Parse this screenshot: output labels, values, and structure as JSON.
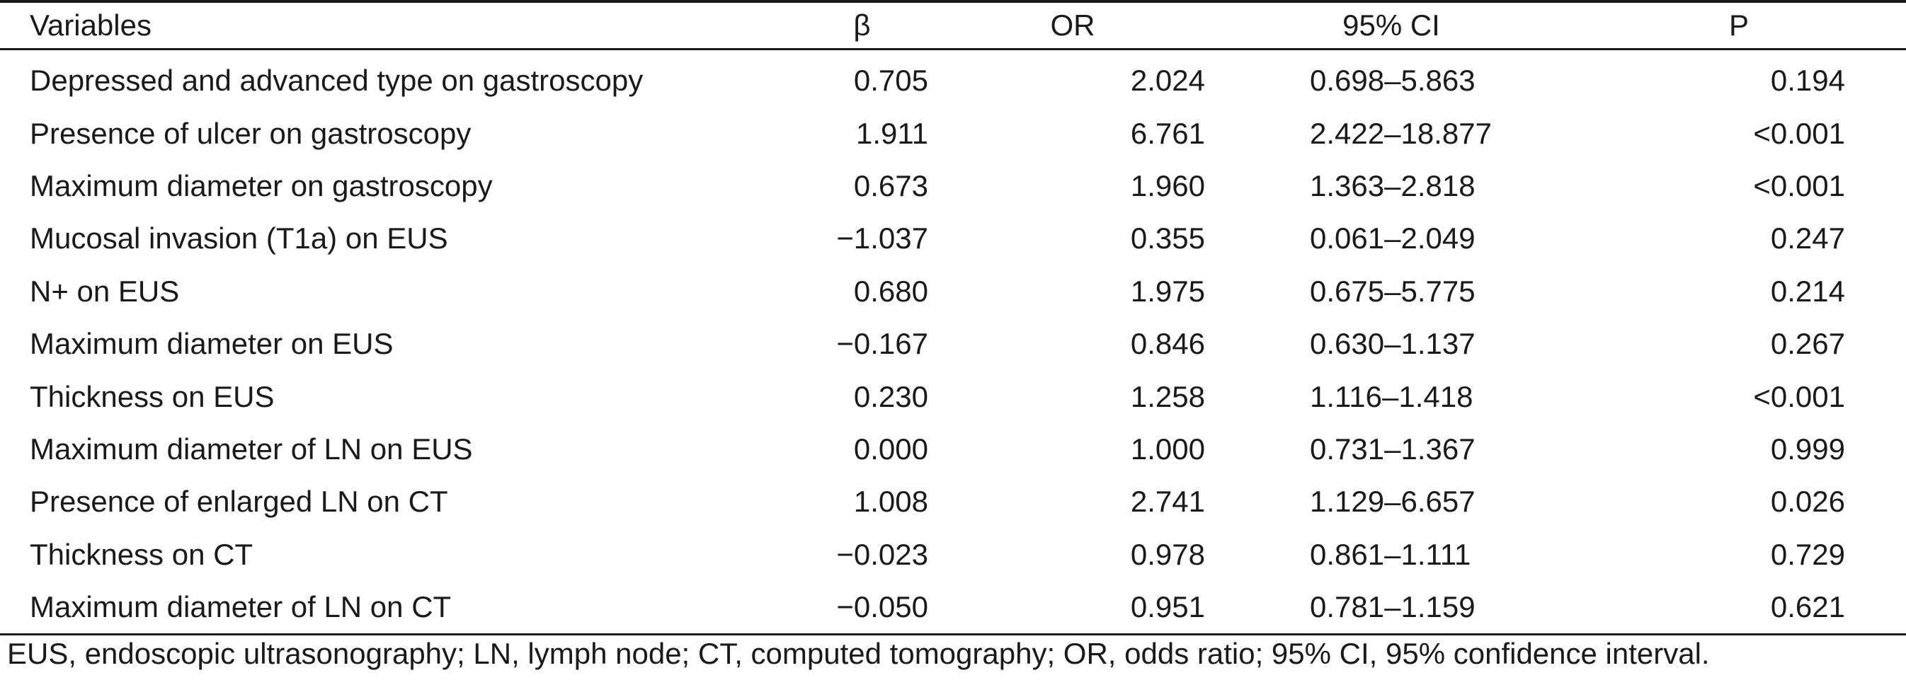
{
  "table": {
    "headers": [
      "Variables",
      "β",
      "OR",
      "95% CI",
      "P"
    ],
    "rows": [
      [
        "Depressed and advanced type on gastroscopy",
        "0.705",
        "2.024",
        "0.698–5.863",
        "0.194"
      ],
      [
        "Presence of ulcer on gastroscopy",
        "1.911",
        "6.761",
        "2.422–18.877",
        "<0.001"
      ],
      [
        "Maximum diameter on gastroscopy",
        "0.673",
        "1.960",
        "1.363–2.818",
        "<0.001"
      ],
      [
        "Mucosal invasion (T1a) on EUS",
        "−1.037",
        "0.355",
        "0.061–2.049",
        "0.247"
      ],
      [
        "N+ on EUS",
        "0.680",
        "1.975",
        "0.675–5.775",
        "0.214"
      ],
      [
        "Maximum diameter on EUS",
        "−0.167",
        "0.846",
        "0.630–1.137",
        "0.267"
      ],
      [
        "Thickness on EUS",
        "0.230",
        "1.258",
        "1.116–1.418",
        "<0.001"
      ],
      [
        "Maximum diameter of LN on EUS",
        "0.000",
        "1.000",
        "0.731–1.367",
        "0.999"
      ],
      [
        "Presence of enlarged LN on CT",
        "1.008",
        "2.741",
        "1.129–6.657",
        "0.026"
      ],
      [
        "Thickness on CT",
        "−0.023",
        "0.978",
        "0.861–1.111",
        "0.729"
      ],
      [
        "Maximum diameter of LN on CT",
        "−0.050",
        "0.951",
        "0.781–1.159",
        "0.621"
      ]
    ]
  },
  "footnote": "EUS, endoscopic ultrasonography; LN, lymph node; CT, computed tomography; OR, odds ratio; 95% CI, 95% confidence interval."
}
